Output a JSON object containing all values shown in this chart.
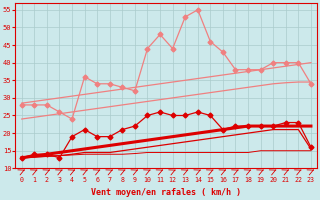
{
  "x": [
    0,
    1,
    2,
    3,
    4,
    5,
    6,
    7,
    8,
    9,
    10,
    11,
    12,
    13,
    14,
    15,
    16,
    17,
    18,
    19,
    20,
    21,
    22,
    23
  ],
  "line_light_jagged": [
    28,
    28,
    28,
    26,
    24,
    36,
    34,
    34,
    33,
    32,
    44,
    48,
    44,
    53,
    55,
    46,
    43,
    38,
    38,
    38,
    40,
    40,
    40,
    34
  ],
  "line_light_trend_upper": [
    28.5,
    29.0,
    29.5,
    30.0,
    30.5,
    31.0,
    31.5,
    32.0,
    32.5,
    33.0,
    33.5,
    34.0,
    34.5,
    35.0,
    35.5,
    36.0,
    36.5,
    37.0,
    37.5,
    38.0,
    38.5,
    39.0,
    39.5,
    40.0
  ],
  "line_light_trend_lower": [
    24.0,
    24.5,
    25.0,
    25.5,
    26.0,
    26.5,
    27.0,
    27.5,
    28.0,
    28.5,
    29.0,
    29.5,
    30.0,
    30.5,
    31.0,
    31.5,
    32.0,
    32.5,
    33.0,
    33.5,
    34.0,
    34.3,
    34.5,
    34.5
  ],
  "line_dark_jagged": [
    13,
    14,
    14,
    13,
    19,
    21,
    19,
    19,
    21,
    22,
    25,
    26,
    25,
    25,
    26,
    25,
    21,
    22,
    22,
    22,
    22,
    23,
    23,
    16
  ],
  "line_dark_trend_thick": [
    13.0,
    13.5,
    14.0,
    14.5,
    15.0,
    15.5,
    16.0,
    16.5,
    17.0,
    17.5,
    18.0,
    18.5,
    19.0,
    19.5,
    20.0,
    20.5,
    21.0,
    21.5,
    22.0,
    22.0,
    22.0,
    22.0,
    22.0,
    22.0
  ],
  "line_dark_trend_mid": [
    13.0,
    13.2,
    13.4,
    13.6,
    14.0,
    14.5,
    14.5,
    14.5,
    15.0,
    15.5,
    16.0,
    16.5,
    17.0,
    17.5,
    18.0,
    18.5,
    19.0,
    19.5,
    20.0,
    20.5,
    21.0,
    21.0,
    21.0,
    15.5
  ],
  "line_dark_flat": [
    13.0,
    13.2,
    13.4,
    13.6,
    13.8,
    14.0,
    14.0,
    14.0,
    14.0,
    14.2,
    14.5,
    14.5,
    14.5,
    14.5,
    14.5,
    14.5,
    14.5,
    14.5,
    14.5,
    15.0,
    15.0,
    15.0,
    15.0,
    15.0
  ],
  "bg_color": "#cce9eb",
  "grid_color": "#aacccc",
  "line_color_light": "#f08080",
  "line_color_dark": "#dd0000",
  "xlabel": "Vent moyen/en rafales ( km/h )",
  "ylim": [
    10,
    57
  ],
  "yticks": [
    10,
    15,
    20,
    25,
    30,
    35,
    40,
    45,
    50,
    55
  ],
  "xlim": [
    -0.5,
    23.5
  ]
}
